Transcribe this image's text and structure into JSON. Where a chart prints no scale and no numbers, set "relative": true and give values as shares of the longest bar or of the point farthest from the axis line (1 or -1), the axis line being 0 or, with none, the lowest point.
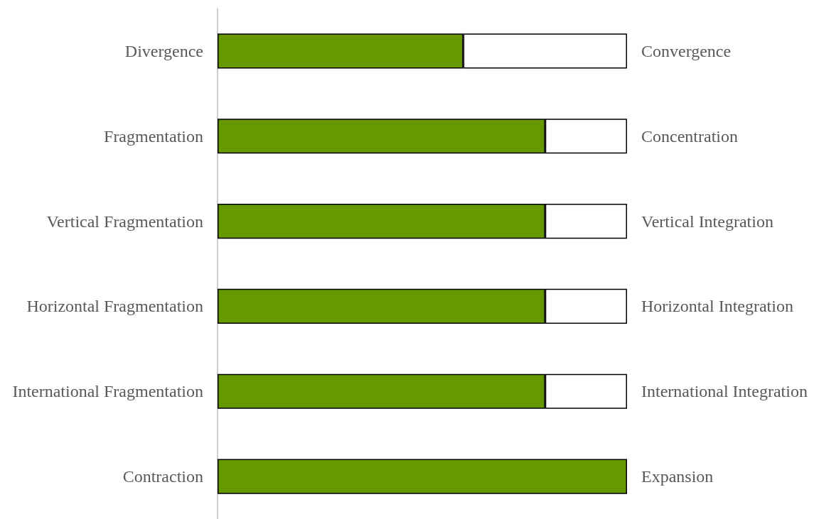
{
  "chart_data": {
    "type": "bar",
    "orientation": "horizontal",
    "stacked": true,
    "relative": true,
    "categories": [
      "Divergence",
      "Fragmentation",
      "Vertical Fragmentation",
      "Horizontal Fragmentation",
      "International Fragmentation",
      "Contraction"
    ],
    "y2_categories": [
      "Convergence",
      "Concentration",
      "Vertical Integration",
      "Horizontal Integration",
      "International Integration",
      "Expansion"
    ],
    "series": [
      {
        "color": "#669900",
        "values": [
          0.6,
          0.8,
          0.8,
          0.8,
          0.8,
          1.0
        ]
      },
      {
        "color": "#ffffff",
        "values": [
          0.4,
          0.2,
          0.2,
          0.2,
          0.2,
          0
        ]
      }
    ]
  }
}
